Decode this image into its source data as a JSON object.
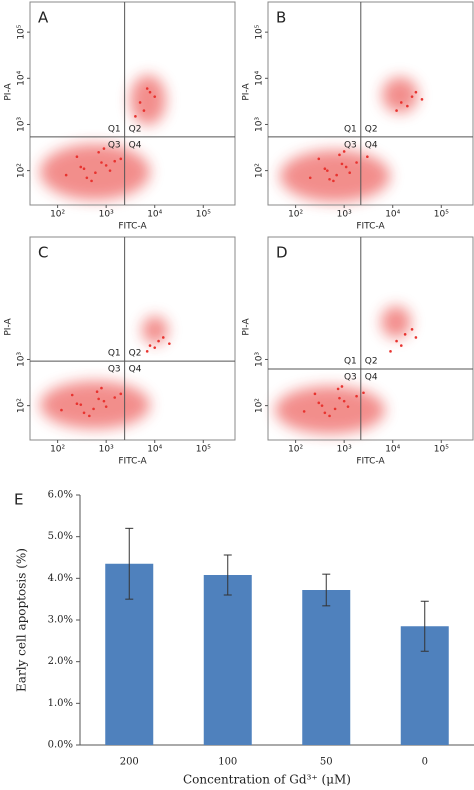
{
  "chart_data": [
    {
      "type": "scatter",
      "title": "A",
      "x_label": "FITC-A",
      "y_label": "PI-A",
      "color": "#e8332f",
      "log_scale": true,
      "quadrant_labels": [
        "Q1",
        "Q2",
        "Q3",
        "Q4"
      ],
      "gates": {
        "x": 2400,
        "y": 540
      },
      "xlim": [
        27,
        450000
      ],
      "ylim": [
        18,
        450000
      ],
      "xticks": [
        {
          "value": 100,
          "label": "10²"
        },
        {
          "value": 1000,
          "label": "10³"
        },
        {
          "value": 10000,
          "label": "10⁴"
        },
        {
          "value": 100000,
          "label": "10⁵"
        }
      ],
      "yticks": [
        {
          "value": 100,
          "label": "10²"
        },
        {
          "value": 1000,
          "label": "10³"
        },
        {
          "value": 10000,
          "label": "10⁴"
        },
        {
          "value": 100000,
          "label": "10⁵"
        }
      ],
      "x": [
        150,
        300,
        500,
        800,
        1200,
        250,
        600,
        1000,
        400,
        700,
        2000,
        350,
        900,
        1500,
        5000,
        8000,
        6000,
        10000,
        4000,
        7000
      ],
      "y": [
        80,
        120,
        60,
        150,
        100,
        200,
        90,
        130,
        70,
        250,
        180,
        110,
        300,
        160,
        3000,
        5000,
        2000,
        4000,
        1500,
        6000
      ]
    },
    {
      "type": "scatter",
      "title": "B",
      "x_label": "FITC-A",
      "y_label": "PI-A",
      "color": "#e8332f",
      "log_scale": true,
      "quadrant_labels": [
        "Q1",
        "Q2",
        "Q3",
        "Q4"
      ],
      "gates": {
        "x": 2200,
        "y": 540
      },
      "xlim": [
        27,
        450000
      ],
      "ylim": [
        18,
        450000
      ],
      "xticks": [
        {
          "value": 100,
          "label": "10²"
        },
        {
          "value": 1000,
          "label": "10³"
        },
        {
          "value": 10000,
          "label": "10⁴"
        },
        {
          "value": 100000,
          "label": "10⁵"
        }
      ],
      "yticks": [
        {
          "value": 100,
          "label": "10²"
        },
        {
          "value": 1000,
          "label": "10³"
        },
        {
          "value": 10000,
          "label": "10⁴"
        },
        {
          "value": 100000,
          "label": "10⁵"
        }
      ],
      "x": [
        200,
        400,
        600,
        900,
        1300,
        300,
        700,
        1100,
        500,
        800,
        1800,
        450,
        1000,
        3000,
        15000,
        25000,
        20000,
        30000,
        12000,
        40000
      ],
      "y": [
        70,
        110,
        60,
        140,
        90,
        180,
        80,
        120,
        65,
        220,
        150,
        100,
        260,
        200,
        3000,
        4000,
        2500,
        5000,
        2000,
        3500
      ]
    },
    {
      "type": "scatter",
      "title": "C",
      "x_label": "FITC-A",
      "y_label": "PI-A",
      "color": "#e8332f",
      "log_scale": true,
      "quadrant_labels": [
        "Q1",
        "Q2",
        "Q3",
        "Q4"
      ],
      "gates": {
        "x": 2400,
        "y": 920
      },
      "xlim": [
        27,
        450000
      ],
      "ylim": [
        18,
        450000
      ],
      "xticks": [
        {
          "value": 100,
          "label": "10²"
        },
        {
          "value": 1000,
          "label": "10³"
        },
        {
          "value": 10000,
          "label": "10⁴"
        },
        {
          "value": 100000,
          "label": "10⁵"
        }
      ],
      "yticks": [
        {
          "value": 100,
          "label": "10²"
        },
        {
          "value": 1000,
          "label": "10³"
        }
      ],
      "x": [
        120,
        250,
        450,
        700,
        1000,
        200,
        550,
        900,
        350,
        650,
        1500,
        300,
        800,
        2000,
        8000,
        12000,
        10000,
        15000,
        7000,
        20000
      ],
      "y": [
        80,
        110,
        60,
        140,
        95,
        170,
        85,
        125,
        70,
        200,
        150,
        105,
        240,
        180,
        2000,
        2500,
        1800,
        3000,
        1500,
        2200
      ]
    },
    {
      "type": "scatter",
      "title": "D",
      "x_label": "FITC-A",
      "y_label": "PI-A",
      "color": "#e8332f",
      "log_scale": true,
      "quadrant_labels": [
        "Q1",
        "Q2",
        "Q3",
        "Q4"
      ],
      "gates": {
        "x": 2200,
        "y": 620
      },
      "xlim": [
        27,
        450000
      ],
      "ylim": [
        18,
        450000
      ],
      "xticks": [
        {
          "value": 100,
          "label": "10²"
        },
        {
          "value": 1000,
          "label": "10³"
        },
        {
          "value": 10000,
          "label": "10⁴"
        },
        {
          "value": 100000,
          "label": "10⁵"
        }
      ],
      "yticks": [
        {
          "value": 100,
          "label": "10²"
        },
        {
          "value": 1000,
          "label": "10³"
        }
      ],
      "x": [
        150,
        300,
        500,
        800,
        1200,
        250,
        650,
        1000,
        400,
        750,
        1800,
        350,
        900,
        2500,
        12000,
        18000,
        15000,
        25000,
        9000,
        30000
      ],
      "y": [
        75,
        115,
        60,
        145,
        95,
        180,
        85,
        125,
        70,
        230,
        160,
        100,
        260,
        190,
        2500,
        3500,
        2000,
        4500,
        1500,
        3000
      ]
    },
    {
      "type": "bar",
      "title": "E",
      "x_label": "Concentration of Gd³⁺ (μM)",
      "y_label": "Early cell apoptosis (%)",
      "color": "#4f81bd",
      "categories": [
        "200",
        "100",
        "50",
        "0"
      ],
      "values": [
        4.35,
        4.08,
        3.72,
        2.85
      ],
      "errors": [
        0.85,
        0.48,
        0.38,
        0.6
      ],
      "ylim": [
        0,
        6
      ],
      "yticks": [
        {
          "value": 0,
          "label": "0.0%"
        },
        {
          "value": 1,
          "label": "1.0%"
        },
        {
          "value": 2,
          "label": "2.0%"
        },
        {
          "value": 3,
          "label": "3.0%"
        },
        {
          "value": 4,
          "label": "4.0%"
        },
        {
          "value": 5,
          "label": "5.0%"
        },
        {
          "value": 6,
          "label": "6.0%"
        }
      ]
    }
  ]
}
